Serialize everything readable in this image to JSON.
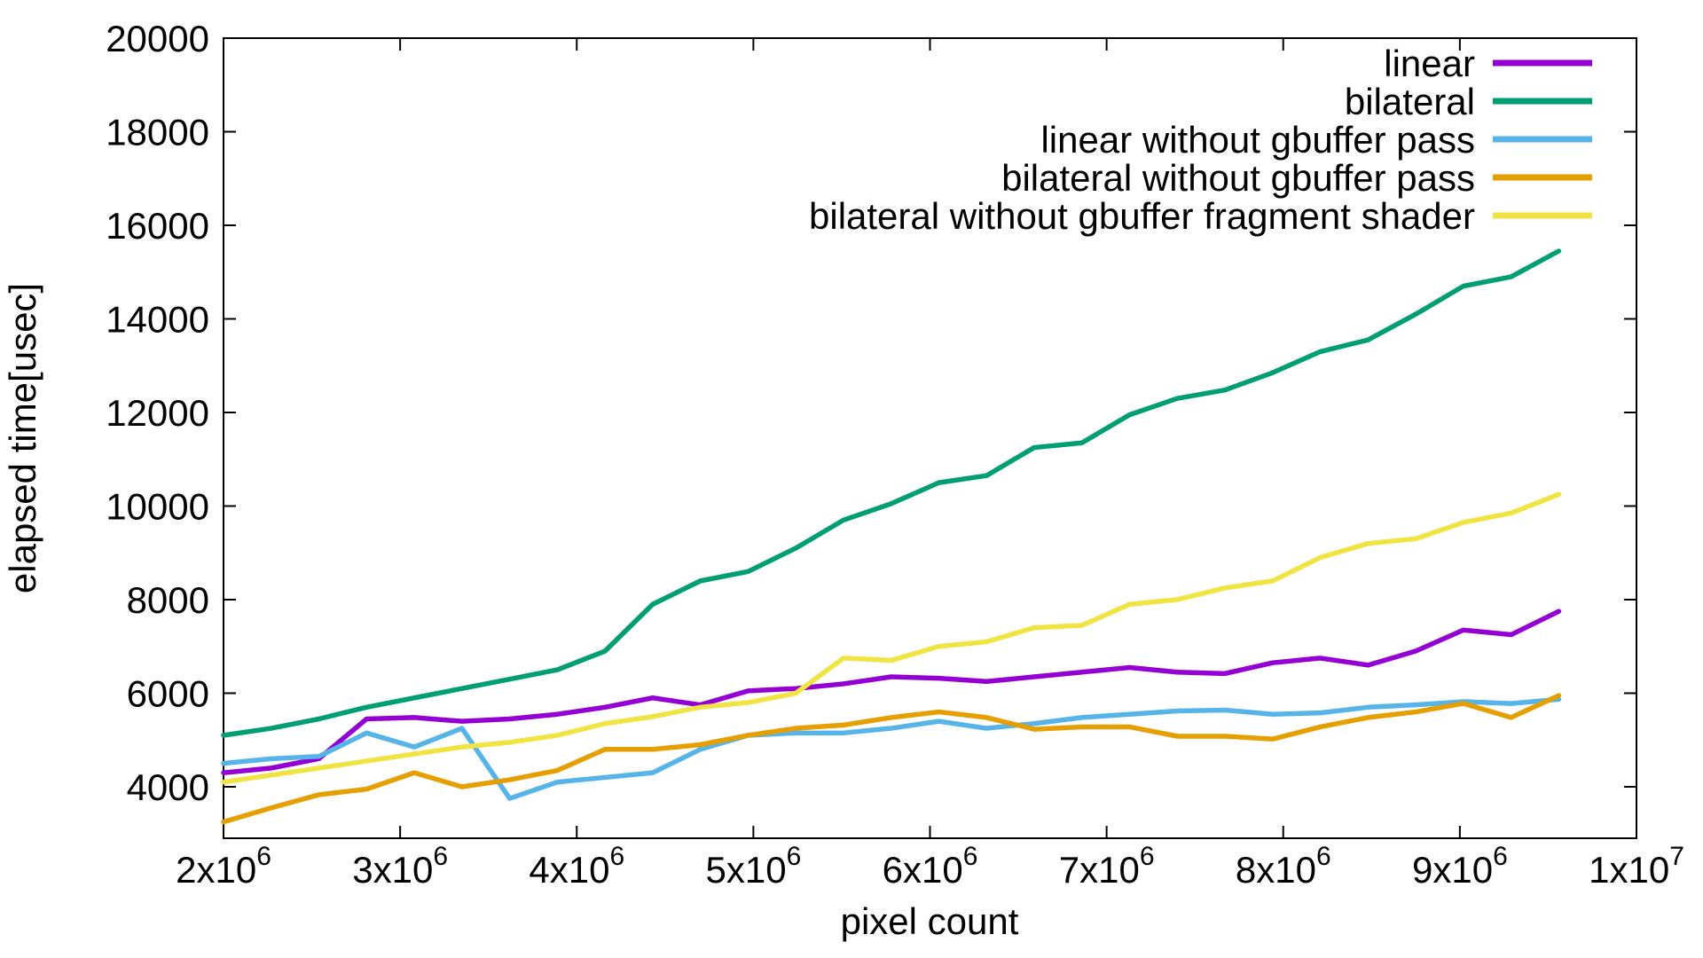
{
  "chart_data": {
    "type": "line",
    "title": "",
    "xlabel": "pixel count",
    "ylabel": "elapsed time[usec]",
    "xlim": [
      2000000,
      10000000
    ],
    "ylim": [
      2900,
      20000
    ],
    "grid": false,
    "legend_position": "top-right-inside",
    "x_ticks": [
      {
        "v": 2000000,
        "label": "2x10^6"
      },
      {
        "v": 3000000,
        "label": "3x10^6"
      },
      {
        "v": 4000000,
        "label": "4x10^6"
      },
      {
        "v": 5000000,
        "label": "5x10^6"
      },
      {
        "v": 6000000,
        "label": "6x10^6"
      },
      {
        "v": 7000000,
        "label": "7x10^6"
      },
      {
        "v": 8000000,
        "label": "8x10^6"
      },
      {
        "v": 9000000,
        "label": "9x10^6"
      },
      {
        "v": 10000000,
        "label": "1x10^7"
      }
    ],
    "y_ticks": [
      {
        "v": 4000,
        "label": "4000"
      },
      {
        "v": 6000,
        "label": "6000"
      },
      {
        "v": 8000,
        "label": "8000"
      },
      {
        "v": 10000,
        "label": "10000"
      },
      {
        "v": 12000,
        "label": "12000"
      },
      {
        "v": 14000,
        "label": "14000"
      },
      {
        "v": 16000,
        "label": "16000"
      },
      {
        "v": 18000,
        "label": "18000"
      },
      {
        "v": 20000,
        "label": "20000"
      }
    ],
    "x": [
      2000000,
      2270000,
      2540000,
      2810000,
      3080000,
      3350000,
      3620000,
      3890000,
      4160000,
      4430000,
      4700000,
      4970000,
      5240000,
      5510000,
      5780000,
      6050000,
      6320000,
      6590000,
      6860000,
      7130000,
      7400000,
      7670000,
      7940000,
      8210000,
      8480000,
      8750000,
      9020000,
      9290000,
      9560000
    ],
    "series": [
      {
        "name": "linear",
        "color": "#9400d3",
        "values": [
          4300,
          4400,
          4600,
          5450,
          5480,
          5400,
          5450,
          5550,
          5700,
          5900,
          5750,
          6050,
          6100,
          6200,
          6350,
          6320,
          6250,
          6350,
          6450,
          6550,
          6450,
          6420,
          6650,
          6750,
          6600,
          6900,
          7350,
          7250,
          7750
        ]
      },
      {
        "name": "bilateral",
        "color": "#009e73",
        "values": [
          5100,
          5250,
          5450,
          5700,
          5900,
          6100,
          6300,
          6500,
          6900,
          7900,
          8400,
          8600,
          9100,
          9700,
          10050,
          10500,
          10650,
          11250,
          11350,
          11950,
          12300,
          12480,
          12850,
          13300,
          13550,
          14100,
          14700,
          14900,
          15450
        ]
      },
      {
        "name": "linear without gbuffer pass",
        "color": "#56b4e9",
        "values": [
          4500,
          4600,
          4650,
          5150,
          4850,
          5250,
          3750,
          4100,
          4200,
          4300,
          4800,
          5100,
          5150,
          5150,
          5250,
          5400,
          5250,
          5350,
          5480,
          5550,
          5620,
          5640,
          5550,
          5580,
          5700,
          5750,
          5820,
          5780,
          5870
        ]
      },
      {
        "name": "bilateral without gbuffer pass",
        "color": "#e69f00",
        "values": [
          3250,
          3550,
          3830,
          3950,
          4300,
          4000,
          4150,
          4350,
          4800,
          4800,
          4900,
          5100,
          5250,
          5320,
          5480,
          5600,
          5480,
          5230,
          5280,
          5280,
          5080,
          5080,
          5020,
          5280,
          5480,
          5600,
          5780,
          5480,
          5950
        ]
      },
      {
        "name": "bilateral without gbuffer fragment shader",
        "color": "#f0e442",
        "values": [
          4100,
          4250,
          4400,
          4550,
          4700,
          4850,
          4950,
          5100,
          5350,
          5500,
          5700,
          5800,
          6000,
          6750,
          6700,
          7000,
          7100,
          7400,
          7450,
          7900,
          8000,
          8250,
          8400,
          8900,
          9200,
          9300,
          9650,
          9850,
          10250
        ]
      }
    ]
  }
}
